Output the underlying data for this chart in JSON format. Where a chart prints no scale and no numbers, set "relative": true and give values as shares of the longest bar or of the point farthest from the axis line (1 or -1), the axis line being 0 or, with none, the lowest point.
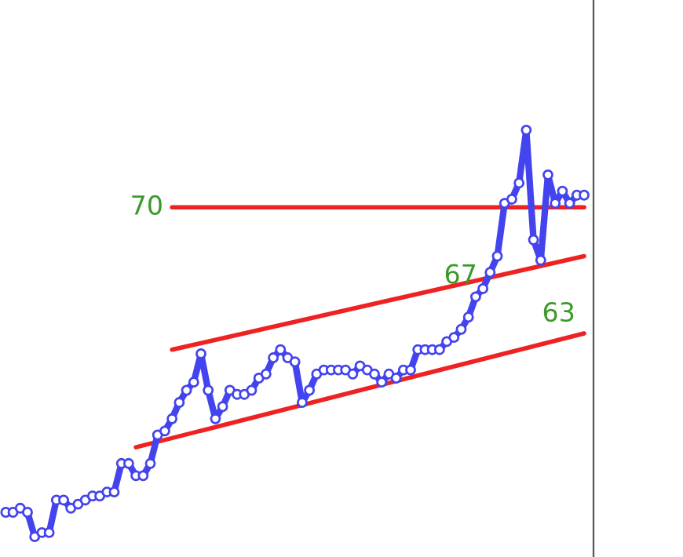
{
  "chart_data": {
    "type": "line",
    "relative": true,
    "legend": false,
    "categories": [
      null,
      null,
      null,
      null,
      null,
      null,
      null,
      null,
      null,
      null,
      null,
      null,
      null,
      null,
      null,
      null,
      null,
      null,
      null,
      null,
      null,
      null,
      null,
      null,
      null,
      null,
      null,
      null,
      null,
      null,
      null,
      null,
      null,
      null,
      null,
      null,
      null,
      null,
      null,
      null,
      null,
      null,
      null,
      null,
      null,
      null,
      null,
      null,
      null,
      null,
      null,
      null,
      null,
      null,
      null,
      null,
      null,
      null,
      null,
      null,
      null,
      null,
      null,
      null,
      null,
      null,
      null,
      null,
      null,
      null,
      null,
      null,
      null,
      null,
      null,
      null,
      null,
      null,
      null,
      null,
      null
    ],
    "series": [
      {
        "color": "#4444ee",
        "marker": "circle",
        "values": [
          0.06,
          0.06,
          0.07,
          0.06,
          0,
          0.01,
          0.01,
          0.09,
          0.09,
          0.07,
          0.08,
          0.09,
          0.1,
          0.1,
          0.11,
          0.11,
          0.18,
          0.18,
          0.15,
          0.15,
          0.18,
          0.25,
          0.26,
          0.29,
          0.33,
          0.36,
          0.38,
          0.45,
          0.36,
          0.29,
          0.32,
          0.36,
          0.35,
          0.35,
          0.36,
          0.39,
          0.4,
          0.44,
          0.46,
          0.44,
          0.43,
          0.33,
          0.36,
          0.4,
          0.41,
          0.41,
          0.41,
          0.41,
          0.4,
          0.42,
          0.41,
          0.4,
          0.38,
          0.4,
          0.39,
          0.41,
          0.41,
          0.46,
          0.46,
          0.46,
          0.46,
          0.48,
          0.49,
          0.51,
          0.54,
          0.59,
          0.61,
          0.65,
          0.69,
          0.82,
          0.83,
          0.87,
          1,
          0.73,
          0.68,
          0.89,
          0.82,
          0.85,
          0.82,
          0.84,
          0.84
        ]
      },
      {
        "name": "67",
        "color": "#ee2222",
        "marker": "none",
        "values": [
          null,
          null,
          null,
          null,
          null,
          null,
          null,
          null,
          null,
          null,
          null,
          null,
          null,
          null,
          null,
          null,
          null,
          null,
          null,
          null,
          null,
          null,
          null,
          0.46,
          null,
          null,
          null,
          null,
          null,
          null,
          null,
          null,
          null,
          null,
          null,
          null,
          null,
          null,
          null,
          null,
          null,
          null,
          null,
          null,
          null,
          null,
          null,
          null,
          null,
          null,
          null,
          null,
          null,
          null,
          null,
          null,
          null,
          null,
          null,
          null,
          null,
          null,
          null,
          null,
          null,
          null,
          null,
          null,
          null,
          null,
          null,
          null,
          null,
          null,
          null,
          null,
          null,
          null,
          null,
          null,
          0.69
        ]
      },
      {
        "name": "63",
        "color": "#ee2222",
        "marker": "none",
        "values": [
          null,
          null,
          null,
          null,
          null,
          null,
          null,
          null,
          null,
          null,
          null,
          null,
          null,
          null,
          null,
          null,
          null,
          null,
          0.22,
          null,
          null,
          null,
          null,
          null,
          null,
          null,
          null,
          null,
          null,
          null,
          null,
          null,
          null,
          null,
          null,
          null,
          null,
          null,
          null,
          null,
          null,
          null,
          null,
          null,
          null,
          null,
          null,
          null,
          null,
          null,
          null,
          null,
          null,
          null,
          null,
          null,
          null,
          null,
          null,
          null,
          null,
          null,
          null,
          null,
          null,
          null,
          null,
          null,
          null,
          null,
          null,
          null,
          null,
          null,
          null,
          null,
          null,
          null,
          null,
          null,
          0.5
        ]
      },
      {
        "name": "70",
        "color": "#ee2222",
        "marker": "none",
        "values": [
          null,
          null,
          null,
          null,
          null,
          null,
          null,
          null,
          null,
          null,
          null,
          null,
          null,
          null,
          null,
          null,
          null,
          null,
          null,
          null,
          null,
          null,
          null,
          0.81,
          null,
          null,
          null,
          null,
          null,
          null,
          null,
          null,
          null,
          null,
          null,
          null,
          null,
          null,
          null,
          null,
          null,
          null,
          null,
          null,
          null,
          null,
          null,
          null,
          null,
          null,
          null,
          null,
          null,
          null,
          null,
          null,
          null,
          null,
          null,
          null,
          null,
          null,
          null,
          null,
          null,
          null,
          null,
          null,
          null,
          null,
          null,
          null,
          null,
          null,
          null,
          null,
          null,
          null,
          null,
          null,
          0.81
        ]
      }
    ]
  }
}
